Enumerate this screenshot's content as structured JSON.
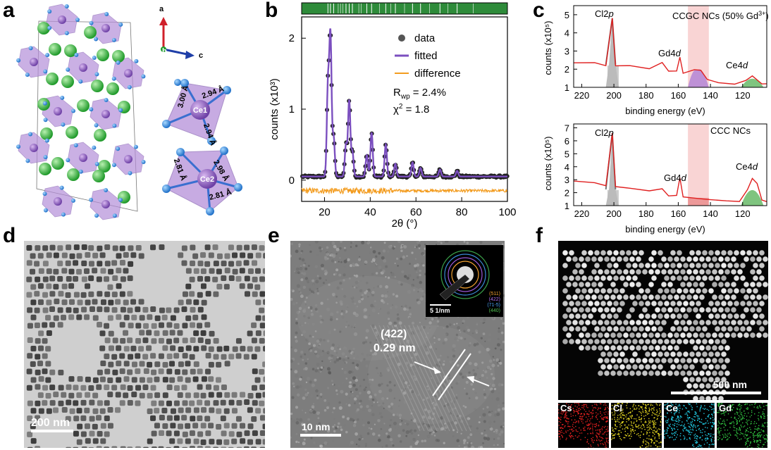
{
  "panels": {
    "a": {
      "letter": "a",
      "axes": {
        "a": "a",
        "b": "b",
        "c": "c"
      },
      "site1": {
        "name": "Ce1",
        "bonds": [
          "3.00 Å",
          "2.94 Å",
          "2.94 Å"
        ]
      },
      "site2": {
        "name": "Ce2",
        "bonds": [
          "2.81 Å",
          "2.98 Å",
          "2.81 Å"
        ]
      }
    },
    "b": {
      "letter": "b",
      "legend": [
        "data",
        "fitted",
        "difference"
      ],
      "rwp_prefix": "R",
      "rwp_sub": "wp",
      "rwp_value": " = 2.4%",
      "chi_prefix": "χ",
      "chi_sup": "2",
      "chi_value": " = 1.8"
    },
    "c": {
      "letter": "c",
      "top_title": "CCGC NCs (50% Gd",
      "top_title_sup": "3+",
      "top_title_end": ")",
      "bottom_title": "CCC NCs",
      "peak_cl_main": "Cl2",
      "peak_cl_it": "p",
      "peak_gd_main": "Gd4",
      "peak_gd_it": "d",
      "peak_ce_main": "Ce4",
      "peak_ce_it": "d"
    },
    "d": {
      "letter": "d",
      "scalebar": "200 nm"
    },
    "e": {
      "letter": "e",
      "plane": "(422)",
      "spacing": "0.29 nm",
      "scalebar": "10 nm",
      "inset_scale": "5 1/nm",
      "rings": [
        "(511)",
        "(422)",
        "(71-5)",
        "(440)"
      ]
    },
    "f": {
      "letter": "f",
      "scalebar": "500 nm",
      "maps": [
        "Cs",
        "Cl",
        "Ce",
        "Gd"
      ]
    }
  },
  "chart_data": [
    {
      "type": "line",
      "xlabel": "2θ (°)",
      "ylabel": "counts (x10³)",
      "xlim": [
        10,
        100
      ],
      "ylim": [
        -0.3,
        2.3
      ],
      "xticks": [
        20,
        40,
        60,
        80,
        100
      ],
      "yticks": [
        0,
        1,
        2
      ],
      "baseline": 0.05,
      "peaks": [
        {
          "x": 21.5,
          "y": 1.25
        },
        {
          "x": 22.6,
          "y": 1.95
        },
        {
          "x": 24.0,
          "y": 0.55
        },
        {
          "x": 29.4,
          "y": 0.45
        },
        {
          "x": 30.8,
          "y": 1.07
        },
        {
          "x": 32.2,
          "y": 0.35
        },
        {
          "x": 38.5,
          "y": 0.3
        },
        {
          "x": 40.6,
          "y": 0.62
        },
        {
          "x": 46.8,
          "y": 0.45
        },
        {
          "x": 51.0,
          "y": 0.18
        },
        {
          "x": 58.5,
          "y": 0.2
        },
        {
          "x": 62.0,
          "y": 0.12
        },
        {
          "x": 70.5,
          "y": 0.1
        },
        {
          "x": 78.0,
          "y": 0.08
        }
      ],
      "series": [
        {
          "name": "data",
          "color": "#555555"
        },
        {
          "name": "fitted",
          "color": "#7b4fbf"
        },
        {
          "name": "difference",
          "color": "#f39c1f"
        }
      ]
    },
    {
      "type": "line",
      "title": "CCGC NCs (50% Gd3+)",
      "xlabel": "binding energy (eV)",
      "ylabel": "counts (x10⁵)",
      "xlim": [
        225,
        105
      ],
      "ylim": [
        1,
        5.5
      ],
      "xticks": [
        220,
        200,
        180,
        160,
        140,
        120
      ],
      "yticks": [
        1,
        2,
        3,
        4,
        5
      ],
      "color": "#e02020",
      "curve": [
        [
          225,
          2.35
        ],
        [
          212,
          2.35
        ],
        [
          205,
          2.2
        ],
        [
          201,
          4.8
        ],
        [
          199,
          2.2
        ],
        [
          190,
          2.2
        ],
        [
          178,
          2.05
        ],
        [
          170,
          2.35
        ],
        [
          166,
          1.9
        ],
        [
          161,
          1.9
        ],
        [
          159,
          2.65
        ],
        [
          157,
          1.75
        ],
        [
          150,
          2.0
        ],
        [
          146,
          1.95
        ],
        [
          142,
          1.45
        ],
        [
          135,
          1.25
        ],
        [
          125,
          1.2
        ],
        [
          118,
          1.4
        ],
        [
          114,
          1.65
        ],
        [
          108,
          1.2
        ],
        [
          105,
          1.2
        ]
      ]
    },
    {
      "type": "line",
      "title": "CCC NCs",
      "xlabel": "binding energy (eV)",
      "ylabel": "counts (x10⁵)",
      "xlim": [
        225,
        105
      ],
      "ylim": [
        1,
        7.3
      ],
      "xticks": [
        220,
        200,
        180,
        160,
        140,
        120
      ],
      "yticks": [
        1,
        2,
        3,
        4,
        5,
        6,
        7
      ],
      "color": "#e02020",
      "curve": [
        [
          225,
          2.9
        ],
        [
          212,
          2.8
        ],
        [
          205,
          2.55
        ],
        [
          201,
          6.6
        ],
        [
          199,
          2.5
        ],
        [
          190,
          2.3
        ],
        [
          178,
          2.1
        ],
        [
          170,
          2.3
        ],
        [
          166,
          1.75
        ],
        [
          161,
          1.75
        ],
        [
          159,
          3.15
        ],
        [
          157,
          1.65
        ],
        [
          150,
          1.55
        ],
        [
          142,
          1.5
        ],
        [
          130,
          1.35
        ],
        [
          122,
          1.35
        ],
        [
          117,
          2.2
        ],
        [
          114,
          3.1
        ],
        [
          111,
          2.7
        ],
        [
          108,
          1.4
        ],
        [
          105,
          1.3
        ]
      ]
    }
  ],
  "colors": {
    "fitted": "#7b4fbf",
    "difference": "#f39c1f",
    "xps_curve": "#e02020",
    "cl_shade": "#cccccc",
    "gd_band": "#f7c9c9",
    "gd_fill": "#b78ad6",
    "ce_fill": "#5fb55f",
    "tick_bar": "#2e8b3a"
  }
}
